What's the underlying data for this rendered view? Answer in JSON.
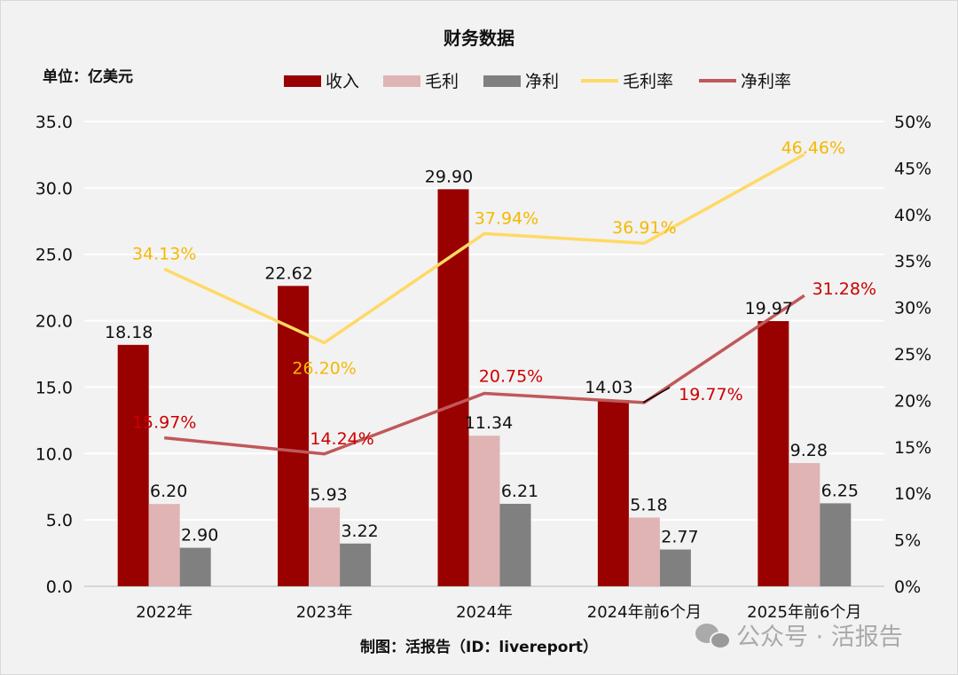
{
  "chart_data": {
    "type": "bar+line",
    "title": "财务数据",
    "unit_label": "单位：亿美元",
    "source": "制图：活报告（ID：livereport）",
    "watermark": "公众号 · 活报告",
    "categories": [
      "2022年",
      "2023年",
      "2024年",
      "2024年前6个月",
      "2025年前6个月"
    ],
    "left_axis": {
      "min": 0,
      "max": 35,
      "ticks": [
        "0.0",
        "5.0",
        "10.0",
        "15.0",
        "20.0",
        "25.0",
        "30.0",
        "35.0"
      ]
    },
    "right_axis": {
      "min": 0,
      "max": 50,
      "ticks": [
        "0%",
        "5%",
        "10%",
        "15%",
        "20%",
        "25%",
        "30%",
        "35%",
        "40%",
        "45%",
        "50%"
      ]
    },
    "grid": true,
    "legend_position": "top",
    "bar_series": [
      {
        "name": "收入",
        "color": "#990000",
        "values": [
          18.18,
          22.62,
          29.9,
          14.03,
          19.97
        ],
        "labels": [
          "18.18",
          "22.62",
          "29.90",
          "14.03",
          "19.97"
        ]
      },
      {
        "name": "毛利",
        "color": "#e0b4b4",
        "values": [
          6.2,
          5.93,
          11.34,
          5.18,
          9.28
        ],
        "labels": [
          "6.20",
          "5.93",
          "11.34",
          "5.18",
          "9.28"
        ]
      },
      {
        "name": "净利",
        "color": "#808080",
        "values": [
          2.9,
          3.22,
          6.21,
          2.77,
          6.25
        ],
        "labels": [
          "2.90",
          "3.22",
          "6.21",
          "2.77",
          "6.25"
        ]
      }
    ],
    "line_series": [
      {
        "name": "毛利率",
        "color": "#ffd966",
        "label_color": "#f5b800",
        "values": [
          34.13,
          26.2,
          37.94,
          36.91,
          46.46
        ],
        "labels": [
          "34.13%",
          "26.20%",
          "37.94%",
          "36.91%",
          "46.46%"
        ]
      },
      {
        "name": "净利率",
        "color": "#c0585a",
        "label_color": "#cc0000",
        "values": [
          15.97,
          14.24,
          20.75,
          19.77,
          31.28
        ],
        "labels": [
          "15.97%",
          "14.24%",
          "20.75%",
          "19.77%",
          "31.28%"
        ]
      }
    ]
  }
}
